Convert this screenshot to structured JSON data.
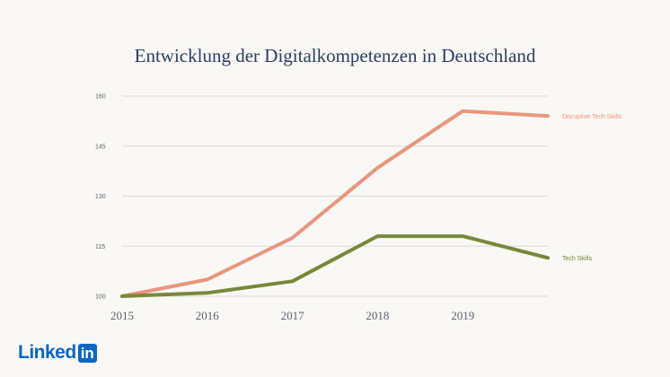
{
  "chart_data": {
    "type": "line",
    "title": "Entwicklung der Digitalkompetenzen in Deutschland",
    "xlabel": "",
    "ylabel": "",
    "x": [
      2015,
      2016,
      2017,
      2018,
      2019,
      2020
    ],
    "x_tick_labels": [
      "2015",
      "2016",
      "2017",
      "2018",
      "2019"
    ],
    "y_ticks": [
      100,
      115,
      130,
      145,
      160
    ],
    "ylim": [
      100,
      160
    ],
    "grid": true,
    "legend": "inline-right",
    "series": [
      {
        "name": "Disruptive Tech Skills",
        "color": "#e9967e",
        "values": [
          100,
          105,
          117.5,
          138.5,
          155.5,
          154
        ]
      },
      {
        "name": "Tech Skills",
        "color": "#76893a",
        "values": [
          100,
          101,
          104.5,
          118,
          118,
          111.5
        ]
      }
    ]
  },
  "logo": {
    "word": "Linked",
    "box": "in"
  }
}
